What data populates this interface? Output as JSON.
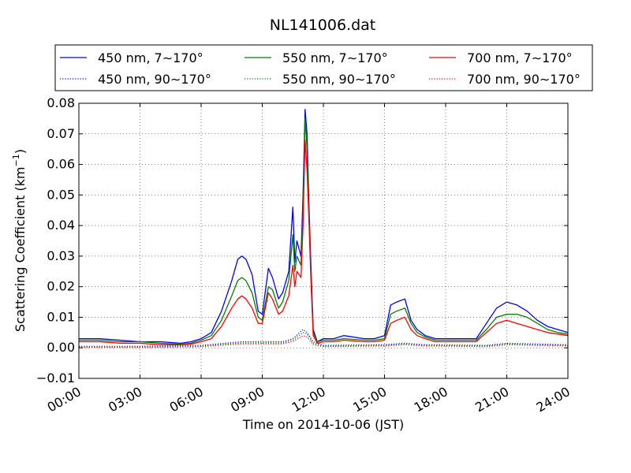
{
  "chart_data": {
    "type": "line",
    "title": "NL141006.dat",
    "xlabel": "Time on 2014-10-06 (JST)",
    "ylabel": "Scattering Coefficient (km",
    "ylabel_unit_exp": "−1",
    "ylabel_close": ")",
    "x_unit": "hours",
    "xlim": [
      0,
      24
    ],
    "ylim": [
      -0.01,
      0.08
    ],
    "grid": true,
    "legend_position": "top",
    "x_ticks": [
      {
        "value": 0,
        "label": "00:00"
      },
      {
        "value": 3,
        "label": "03:00"
      },
      {
        "value": 6,
        "label": "06:00"
      },
      {
        "value": 9,
        "label": "09:00"
      },
      {
        "value": 12,
        "label": "12:00"
      },
      {
        "value": 15,
        "label": "15:00"
      },
      {
        "value": 18,
        "label": "18:00"
      },
      {
        "value": 21,
        "label": "21:00"
      },
      {
        "value": 24,
        "label": "24:00"
      }
    ],
    "y_ticks": [
      {
        "value": -0.01,
        "label": "−0.01"
      },
      {
        "value": 0.0,
        "label": "0.00"
      },
      {
        "value": 0.01,
        "label": "0.01"
      },
      {
        "value": 0.02,
        "label": "0.02"
      },
      {
        "value": 0.03,
        "label": "0.03"
      },
      {
        "value": 0.04,
        "label": "0.04"
      },
      {
        "value": 0.05,
        "label": "0.05"
      },
      {
        "value": 0.06,
        "label": "0.06"
      },
      {
        "value": 0.07,
        "label": "0.07"
      },
      {
        "value": 0.08,
        "label": "0.08"
      }
    ],
    "series": [
      {
        "name": "450 nm, 7∼170°",
        "color": "#0000ff",
        "style": "solid",
        "x": [
          0,
          1,
          2,
          3,
          4,
          5,
          5.5,
          6,
          6.5,
          7,
          7.5,
          7.8,
          8,
          8.2,
          8.5,
          8.8,
          9,
          9.3,
          9.5,
          9.8,
          10,
          10.3,
          10.5,
          10.6,
          10.7,
          10.9,
          11,
          11.1,
          11.2,
          11.3,
          11.4,
          11.5,
          11.7,
          12,
          12.5,
          13,
          14,
          14.5,
          15,
          15.3,
          15.6,
          16,
          16.3,
          16.6,
          17,
          17.5,
          18,
          19,
          19.5,
          20,
          20.5,
          21,
          21.5,
          22,
          22.5,
          23,
          23.5,
          24
        ],
        "y": [
          0.003,
          0.003,
          0.0025,
          0.002,
          0.002,
          0.0015,
          0.002,
          0.003,
          0.005,
          0.012,
          0.022,
          0.029,
          0.03,
          0.029,
          0.024,
          0.012,
          0.011,
          0.026,
          0.023,
          0.016,
          0.018,
          0.025,
          0.046,
          0.028,
          0.035,
          0.03,
          0.05,
          0.078,
          0.07,
          0.045,
          0.025,
          0.006,
          0.002,
          0.003,
          0.003,
          0.004,
          0.003,
          0.003,
          0.004,
          0.014,
          0.015,
          0.016,
          0.009,
          0.006,
          0.004,
          0.003,
          0.003,
          0.003,
          0.003,
          0.008,
          0.013,
          0.015,
          0.014,
          0.012,
          0.009,
          0.007,
          0.006,
          0.005
        ]
      },
      {
        "name": "550 nm, 7∼170°",
        "color": "#008000",
        "style": "solid",
        "x": [
          0,
          1,
          2,
          3,
          4,
          5,
          5.5,
          6,
          6.5,
          7,
          7.5,
          7.8,
          8,
          8.2,
          8.5,
          8.8,
          9,
          9.3,
          9.5,
          9.8,
          10,
          10.3,
          10.5,
          10.6,
          10.7,
          10.9,
          11,
          11.1,
          11.2,
          11.3,
          11.4,
          11.5,
          11.7,
          12,
          12.5,
          13,
          14,
          14.5,
          15,
          15.3,
          15.6,
          16,
          16.3,
          16.6,
          17,
          17.5,
          18,
          19,
          19.5,
          20,
          20.5,
          21,
          21.5,
          22,
          22.5,
          23,
          23.5,
          24
        ],
        "y": [
          0.0025,
          0.0025,
          0.002,
          0.002,
          0.0015,
          0.0012,
          0.0015,
          0.0025,
          0.004,
          0.009,
          0.017,
          0.022,
          0.023,
          0.022,
          0.018,
          0.01,
          0.009,
          0.02,
          0.019,
          0.013,
          0.015,
          0.022,
          0.037,
          0.025,
          0.03,
          0.027,
          0.045,
          0.075,
          0.065,
          0.042,
          0.022,
          0.005,
          0.002,
          0.0025,
          0.0025,
          0.003,
          0.0025,
          0.0025,
          0.003,
          0.011,
          0.012,
          0.013,
          0.008,
          0.005,
          0.0035,
          0.0025,
          0.0025,
          0.0025,
          0.0025,
          0.006,
          0.01,
          0.011,
          0.011,
          0.01,
          0.008,
          0.006,
          0.005,
          0.0045
        ]
      },
      {
        "name": "700 nm, 7∼170°",
        "color": "#ff0000",
        "style": "solid",
        "x": [
          0,
          1,
          2,
          3,
          4,
          5,
          5.5,
          6,
          6.5,
          7,
          7.5,
          7.8,
          8,
          8.2,
          8.5,
          8.8,
          9,
          9.3,
          9.5,
          9.8,
          10,
          10.3,
          10.5,
          10.6,
          10.7,
          10.9,
          11,
          11.1,
          11.2,
          11.3,
          11.4,
          11.5,
          11.7,
          12,
          12.5,
          13,
          14,
          14.5,
          15,
          15.3,
          15.6,
          16,
          16.3,
          16.6,
          17,
          17.5,
          18,
          19,
          19.5,
          20,
          20.5,
          21,
          21.5,
          22,
          22.5,
          23,
          23.5,
          24
        ],
        "y": [
          0.002,
          0.002,
          0.0015,
          0.0015,
          0.001,
          0.001,
          0.0012,
          0.002,
          0.003,
          0.007,
          0.013,
          0.016,
          0.017,
          0.016,
          0.013,
          0.008,
          0.008,
          0.018,
          0.016,
          0.011,
          0.012,
          0.017,
          0.027,
          0.02,
          0.025,
          0.023,
          0.04,
          0.068,
          0.058,
          0.04,
          0.02,
          0.004,
          0.0015,
          0.002,
          0.002,
          0.0025,
          0.002,
          0.002,
          0.0025,
          0.008,
          0.009,
          0.01,
          0.006,
          0.004,
          0.003,
          0.002,
          0.002,
          0.002,
          0.002,
          0.005,
          0.008,
          0.009,
          0.008,
          0.007,
          0.006,
          0.005,
          0.0045,
          0.004
        ]
      },
      {
        "name": "450 nm, 90∼170°",
        "color": "#0000ff",
        "style": "dotted",
        "x": [
          0,
          3,
          6,
          8,
          9,
          10,
          10.5,
          11,
          11.2,
          11.5,
          12,
          15,
          16,
          17,
          20,
          21,
          24
        ],
        "y": [
          0.0005,
          0.0005,
          0.0008,
          0.002,
          0.002,
          0.002,
          0.003,
          0.006,
          0.005,
          0.002,
          0.0008,
          0.001,
          0.0015,
          0.001,
          0.0008,
          0.0015,
          0.001
        ]
      },
      {
        "name": "550 nm, 90∼170°",
        "color": "#008000",
        "style": "dotted",
        "x": [
          0,
          3,
          6,
          8,
          9,
          10,
          10.5,
          11,
          11.2,
          11.5,
          12,
          15,
          16,
          17,
          20,
          21,
          24
        ],
        "y": [
          0.0003,
          0.0003,
          0.0006,
          0.0016,
          0.0016,
          0.0016,
          0.0025,
          0.005,
          0.0045,
          0.0015,
          0.0006,
          0.0008,
          0.0012,
          0.0008,
          0.0006,
          0.0012,
          0.0008
        ]
      },
      {
        "name": "700 nm, 90∼170°",
        "color": "#ff0000",
        "style": "dotted",
        "x": [
          0,
          3,
          6,
          8,
          9,
          10,
          10.5,
          11,
          11.2,
          11.5,
          12,
          15,
          16,
          17,
          20,
          21,
          24
        ],
        "y": [
          0.0001,
          0.0001,
          0.0004,
          0.0013,
          0.0013,
          0.0013,
          0.002,
          0.004,
          0.0035,
          0.001,
          0.0004,
          0.0006,
          0.001,
          0.0006,
          0.0004,
          0.001,
          0.0006
        ]
      }
    ]
  }
}
